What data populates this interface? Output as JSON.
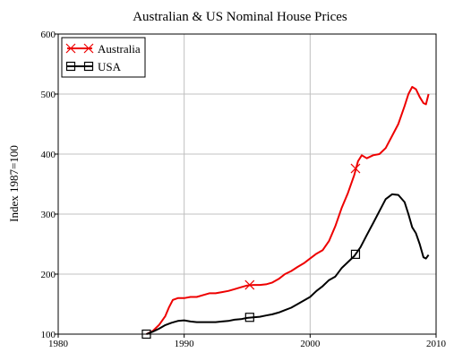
{
  "chart_data": {
    "type": "line",
    "title": "Australian & US Nominal House Prices",
    "xlabel": "",
    "ylabel": "Index 1987=100",
    "xlim": [
      1980,
      2010
    ],
    "ylim": [
      100,
      600
    ],
    "xticks": [
      1980,
      1990,
      2000,
      2010
    ],
    "yticks": [
      100,
      200,
      300,
      400,
      500,
      600
    ],
    "grid": true,
    "legend_position": "top-left",
    "series": [
      {
        "name": "Australia",
        "color": "#ee0000",
        "marker": "x",
        "marker_points": [
          [
            1995.2,
            182
          ],
          [
            2003.6,
            376
          ]
        ],
        "points": [
          [
            1987.0,
            100
          ],
          [
            1987.5,
            105
          ],
          [
            1988.0,
            115
          ],
          [
            1988.5,
            130
          ],
          [
            1988.8,
            145
          ],
          [
            1989.1,
            157
          ],
          [
            1989.5,
            160
          ],
          [
            1990.0,
            160
          ],
          [
            1990.5,
            162
          ],
          [
            1991.0,
            162
          ],
          [
            1991.5,
            165
          ],
          [
            1992.0,
            168
          ],
          [
            1992.5,
            168
          ],
          [
            1993.0,
            170
          ],
          [
            1993.5,
            172
          ],
          [
            1994.0,
            175
          ],
          [
            1994.5,
            178
          ],
          [
            1995.0,
            181
          ],
          [
            1995.5,
            182
          ],
          [
            1996.0,
            182
          ],
          [
            1996.5,
            183
          ],
          [
            1997.0,
            186
          ],
          [
            1997.5,
            192
          ],
          [
            1998.0,
            200
          ],
          [
            1998.5,
            205
          ],
          [
            1999.0,
            212
          ],
          [
            1999.5,
            218
          ],
          [
            2000.0,
            226
          ],
          [
            2000.5,
            234
          ],
          [
            2001.0,
            240
          ],
          [
            2001.5,
            255
          ],
          [
            2002.0,
            280
          ],
          [
            2002.5,
            310
          ],
          [
            2003.0,
            335
          ],
          [
            2003.5,
            365
          ],
          [
            2003.8,
            388
          ],
          [
            2004.1,
            398
          ],
          [
            2004.5,
            393
          ],
          [
            2005.0,
            398
          ],
          [
            2005.5,
            400
          ],
          [
            2006.0,
            410
          ],
          [
            2006.5,
            430
          ],
          [
            2007.0,
            450
          ],
          [
            2007.5,
            480
          ],
          [
            2007.8,
            500
          ],
          [
            2008.1,
            512
          ],
          [
            2008.4,
            508
          ],
          [
            2008.7,
            495
          ],
          [
            2009.0,
            485
          ],
          [
            2009.2,
            483
          ],
          [
            2009.4,
            500
          ]
        ]
      },
      {
        "name": "USA",
        "color": "#000000",
        "marker": "square",
        "marker_points": [
          [
            1987.0,
            100
          ],
          [
            1995.2,
            128
          ],
          [
            2003.6,
            233
          ]
        ],
        "points": [
          [
            1987.0,
            100
          ],
          [
            1987.5,
            104
          ],
          [
            1988.0,
            109
          ],
          [
            1988.5,
            115
          ],
          [
            1989.0,
            119
          ],
          [
            1989.5,
            122
          ],
          [
            1990.0,
            123
          ],
          [
            1990.5,
            121
          ],
          [
            1991.0,
            120
          ],
          [
            1991.5,
            120
          ],
          [
            1992.0,
            120
          ],
          [
            1992.5,
            120
          ],
          [
            1993.0,
            121
          ],
          [
            1993.5,
            122
          ],
          [
            1994.0,
            124
          ],
          [
            1994.5,
            125
          ],
          [
            1995.0,
            127
          ],
          [
            1995.5,
            128
          ],
          [
            1996.0,
            129
          ],
          [
            1996.5,
            131
          ],
          [
            1997.0,
            133
          ],
          [
            1997.5,
            136
          ],
          [
            1998.0,
            140
          ],
          [
            1998.5,
            144
          ],
          [
            1999.0,
            150
          ],
          [
            1999.5,
            156
          ],
          [
            2000.0,
            162
          ],
          [
            2000.5,
            172
          ],
          [
            2001.0,
            180
          ],
          [
            2001.5,
            190
          ],
          [
            2002.0,
            196
          ],
          [
            2002.5,
            210
          ],
          [
            2003.0,
            220
          ],
          [
            2003.5,
            230
          ],
          [
            2004.0,
            245
          ],
          [
            2004.5,
            265
          ],
          [
            2005.0,
            285
          ],
          [
            2005.5,
            305
          ],
          [
            2006.0,
            325
          ],
          [
            2006.5,
            333
          ],
          [
            2007.0,
            332
          ],
          [
            2007.5,
            320
          ],
          [
            2007.8,
            300
          ],
          [
            2008.1,
            278
          ],
          [
            2008.4,
            268
          ],
          [
            2008.7,
            250
          ],
          [
            2009.0,
            228
          ],
          [
            2009.2,
            226
          ],
          [
            2009.4,
            232
          ]
        ]
      }
    ]
  }
}
